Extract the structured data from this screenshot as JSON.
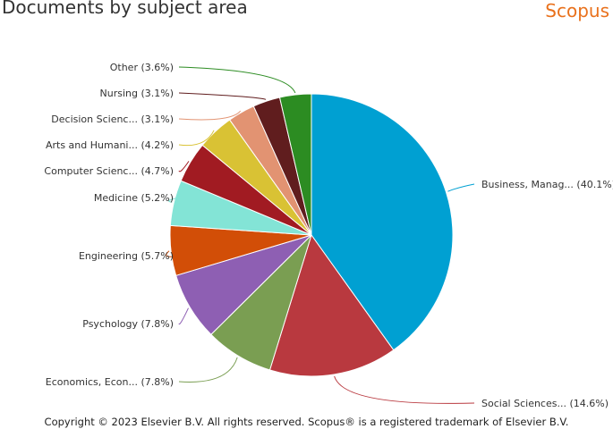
{
  "header": {
    "title": "Documents by subject area",
    "brand": "Scopus"
  },
  "footer": {
    "copyright": "Copyright © 2023 Elsevier B.V. All rights reserved. Scopus® is a registered trademark of Elsevier B.V."
  },
  "chart_data": {
    "type": "pie",
    "title": "Documents by subject area",
    "legend": "none",
    "start_angle_deg": 0,
    "direction": "clockwise",
    "slices": [
      {
        "label": "Business, Manag... (40.1%)",
        "value": 40.1,
        "color": "#00a0d2"
      },
      {
        "label": "Social Sciences... (14.6%)",
        "value": 14.6,
        "color": "#b9393f"
      },
      {
        "label": "Economics, Econ... (7.8%)",
        "value": 7.8,
        "color": "#7a9e52"
      },
      {
        "label": "Psychology (7.8%)",
        "value": 7.8,
        "color": "#8e5fb3"
      },
      {
        "label": "Engineering (5.7%)",
        "value": 5.7,
        "color": "#d24e07"
      },
      {
        "label": "Medicine (5.2%)",
        "value": 5.2,
        "color": "#83e4d6"
      },
      {
        "label": "Computer Scienc... (4.7%)",
        "value": 4.7,
        "color": "#a11b22"
      },
      {
        "label": "Arts and Humani... (4.2%)",
        "value": 4.2,
        "color": "#d9c234"
      },
      {
        "label": "Decision Scienc... (3.1%)",
        "value": 3.1,
        "color": "#e29372"
      },
      {
        "label": "Nursing (3.1%)",
        "value": 3.1,
        "color": "#601d1e"
      },
      {
        "label": "Other (3.6%)",
        "value": 3.6,
        "color": "#2c8c22"
      }
    ]
  }
}
